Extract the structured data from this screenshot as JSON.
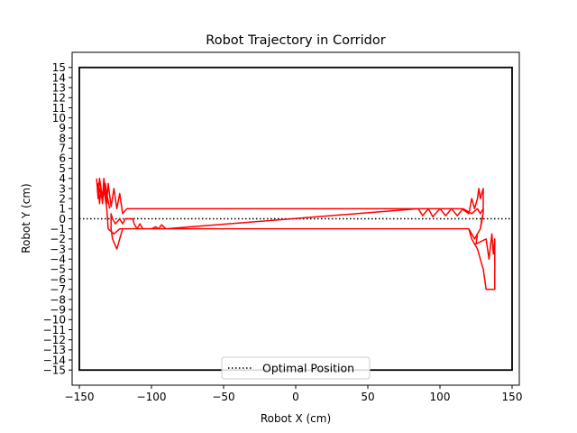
{
  "chart_data": {
    "type": "line",
    "title": "Robot Trajectory in Corridor",
    "xlabel": "Robot X (cm)",
    "ylabel": "Robot Y (cm)",
    "xlim": [
      -155,
      155
    ],
    "ylim": [
      -16.5,
      16.5
    ],
    "xticks": [
      -150,
      -100,
      -50,
      0,
      50,
      100,
      150
    ],
    "yticks": [
      -15,
      -14,
      -13,
      -12,
      -11,
      -10,
      -9,
      -8,
      -7,
      -6,
      -5,
      -4,
      -3,
      -2,
      -1,
      0,
      1,
      2,
      3,
      4,
      5,
      6,
      7,
      8,
      9,
      10,
      11,
      12,
      13,
      14,
      15
    ],
    "grid": false,
    "legend": {
      "position": "lower-center",
      "entries": [
        "Optimal Position"
      ]
    },
    "corridor": {
      "x": [
        -150,
        150
      ],
      "y": [
        -15,
        15
      ],
      "color": "#000000"
    },
    "series": [
      {
        "name": "Optimal Position",
        "style": "dotted",
        "color": "#000000",
        "x": [
          -150,
          150
        ],
        "y": [
          0,
          0
        ]
      },
      {
        "style": "solid",
        "color": "#ff0000",
        "x": [
          -138,
          -137,
          -136,
          -134,
          -133,
          -131,
          -130,
          -128,
          -126,
          -124,
          -122,
          -120,
          -117,
          88,
          115,
          120,
          122,
          124,
          126,
          127,
          128,
          130,
          130,
          128,
          126,
          125,
          132,
          134,
          136,
          137,
          138,
          138,
          137,
          135,
          132,
          130,
          126,
          122,
          120,
          118,
          -110,
          -120,
          -122,
          -124,
          -127,
          -128,
          -128,
          -127,
          -125,
          -122,
          -120,
          -118,
          -113,
          -112,
          -110,
          -108,
          -106,
          -100,
          -97,
          -95,
          -93,
          -90,
          85,
          88,
          92,
          95,
          100,
          104,
          108,
          112,
          116,
          122,
          126,
          128,
          130,
          130,
          129,
          128,
          126,
          124,
          120,
          85,
          -118,
          -122,
          -126,
          -130,
          -131,
          -133,
          -134,
          -135,
          -136,
          -137,
          -137,
          -136,
          -134,
          -132,
          -131,
          -129
        ],
        "y": [
          4,
          2,
          4,
          2,
          4,
          1.5,
          3.5,
          1.2,
          3,
          1,
          2.5,
          0.5,
          1,
          1,
          1,
          0.5,
          2,
          1,
          2,
          3,
          2,
          3,
          0.5,
          -1,
          -1.5,
          -2.5,
          -2,
          -4,
          -1.5,
          -3.5,
          -2,
          -7,
          -7,
          -7,
          -7,
          -5,
          -3,
          -2,
          -1,
          -1,
          -1,
          -1,
          -2,
          -3,
          -2,
          -1,
          0.5,
          0,
          -0.5,
          0,
          -0.5,
          0,
          0,
          -0.5,
          -1,
          -0.5,
          -1,
          -1,
          -0.8,
          -1,
          -0.6,
          -1,
          1,
          0.3,
          1,
          0.2,
          1,
          0.3,
          1,
          0.3,
          1,
          0.5,
          1,
          0.5,
          1,
          0.5,
          0,
          -1,
          -1.5,
          -2,
          -1,
          -1,
          -1,
          -1,
          -1.5,
          -1,
          1,
          3,
          1.5,
          3,
          1.5,
          3.5,
          2,
          3,
          1.8,
          3.5,
          2.5,
          1
        ]
      }
    ]
  }
}
